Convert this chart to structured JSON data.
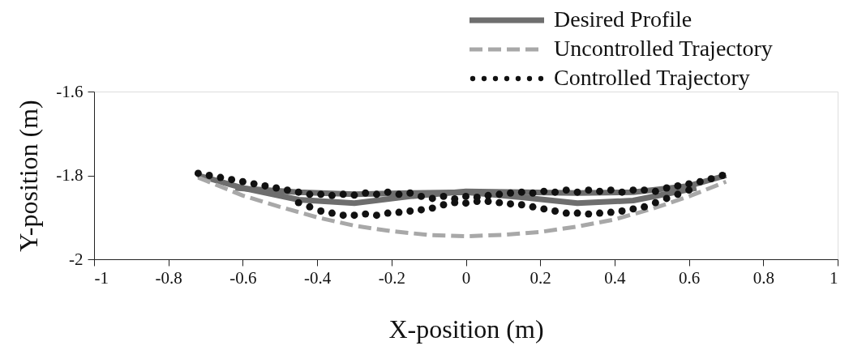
{
  "chart_data": {
    "type": "line",
    "xlabel": "X-position (m)",
    "ylabel": "Y-position (m)",
    "xlim": [
      -1,
      1
    ],
    "xticks": [
      -1,
      -0.8,
      -0.6,
      -0.4,
      -0.2,
      0,
      0.2,
      0.4,
      0.6,
      0.8,
      1
    ],
    "ylim": [
      -2,
      -1.6
    ],
    "yticks": [
      -2,
      -1.8,
      -1.6
    ],
    "legend": "top right",
    "series": [
      {
        "name": "Desired Profile",
        "type": "line",
        "line_style": "solid",
        "color": "#6e6e6e",
        "x": [
          -0.72,
          -0.6,
          -0.45,
          -0.3,
          -0.15,
          0,
          0.15,
          0.3,
          0.45,
          0.6,
          0.7
        ],
        "values": [
          -1.8,
          -1.83,
          -1.858,
          -1.866,
          -1.85,
          -1.838,
          -1.84,
          -1.842,
          -1.84,
          -1.825,
          -1.8
        ]
      },
      {
        "type": "line",
        "line_style": "solid",
        "color": "#6e6e6e",
        "x": [
          -0.62,
          -0.45,
          -0.3,
          -0.15,
          0,
          0.15,
          0.3,
          0.45,
          0.62
        ],
        "values": [
          -1.83,
          -1.84,
          -1.845,
          -1.842,
          -1.84,
          -1.852,
          -1.866,
          -1.86,
          -1.83
        ]
      },
      {
        "name": "Uncontrolled Trajectory",
        "type": "line",
        "line_style": "dashed",
        "color": "#a8a8a8",
        "x": [
          -0.72,
          -0.6,
          -0.5,
          -0.4,
          -0.3,
          -0.2,
          -0.1,
          0,
          0.1,
          0.2,
          0.3,
          0.4,
          0.5,
          0.6,
          0.7
        ],
        "values": [
          -1.805,
          -1.848,
          -1.875,
          -1.9,
          -1.92,
          -1.933,
          -1.942,
          -1.945,
          -1.942,
          -1.935,
          -1.922,
          -1.905,
          -1.88,
          -1.85,
          -1.815
        ]
      },
      {
        "name": "Controlled Trajectory",
        "type": "scatter",
        "marker": "circle",
        "color": "#111111",
        "x": [
          -0.72,
          -0.69,
          -0.66,
          -0.63,
          -0.6,
          -0.57,
          -0.54,
          -0.51,
          -0.48,
          -0.45,
          -0.42,
          -0.39,
          -0.36,
          -0.33,
          -0.3,
          -0.27,
          -0.24,
          -0.21,
          -0.18,
          -0.15,
          -0.12,
          -0.09,
          -0.06,
          -0.03,
          0,
          0.03,
          0.06,
          0.09,
          0.12,
          0.15,
          0.18,
          0.21,
          0.24,
          0.27,
          0.3,
          0.33,
          0.36,
          0.39,
          0.42,
          0.45,
          0.48,
          0.51,
          0.54,
          0.57,
          0.6,
          0.63,
          0.66,
          0.69,
          -0.45,
          -0.42,
          -0.39,
          -0.36,
          -0.33,
          -0.3,
          -0.27,
          -0.24,
          -0.21,
          -0.18,
          -0.15,
          -0.12,
          -0.09,
          -0.06,
          -0.03,
          0,
          0.03,
          0.06,
          0.09,
          0.12,
          0.15,
          0.18,
          0.21,
          0.24,
          0.27,
          0.3,
          0.33,
          0.36,
          0.39,
          0.42,
          0.45,
          0.48,
          0.51,
          0.54,
          0.57,
          0.6
        ],
        "values": [
          -1.795,
          -1.8,
          -1.805,
          -1.81,
          -1.815,
          -1.82,
          -1.825,
          -1.83,
          -1.835,
          -1.84,
          -1.845,
          -1.845,
          -1.848,
          -1.845,
          -1.847,
          -1.842,
          -1.845,
          -1.84,
          -1.845,
          -1.842,
          -1.85,
          -1.855,
          -1.85,
          -1.856,
          -1.85,
          -1.852,
          -1.848,
          -1.845,
          -1.842,
          -1.84,
          -1.842,
          -1.838,
          -1.84,
          -1.835,
          -1.84,
          -1.835,
          -1.838,
          -1.835,
          -1.84,
          -1.835,
          -1.835,
          -1.838,
          -1.83,
          -1.825,
          -1.82,
          -1.815,
          -1.808,
          -1.8,
          -1.865,
          -1.875,
          -1.885,
          -1.89,
          -1.895,
          -1.895,
          -1.892,
          -1.895,
          -1.89,
          -1.888,
          -1.885,
          -1.882,
          -1.878,
          -1.87,
          -1.865,
          -1.866,
          -1.862,
          -1.862,
          -1.865,
          -1.868,
          -1.87,
          -1.875,
          -1.88,
          -1.885,
          -1.89,
          -1.89,
          -1.892,
          -1.89,
          -1.888,
          -1.885,
          -1.88,
          -1.875,
          -1.865,
          -1.855,
          -1.845,
          -1.835
        ]
      }
    ]
  }
}
